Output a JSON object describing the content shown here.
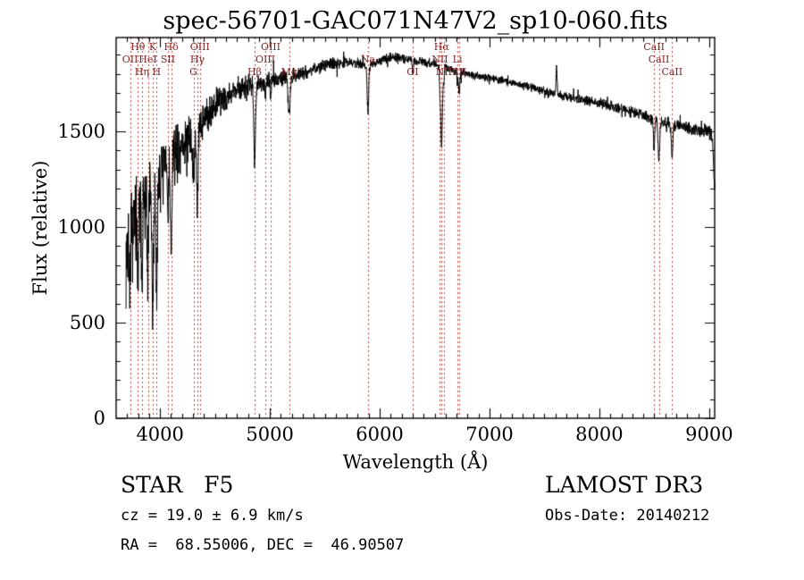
{
  "title": "spec-56701-GAC071N47V2_sp10-060.fits",
  "footer": {
    "class_label": "STAR   F5",
    "survey": "LAMOST DR3",
    "cz": "cz = 19.0 ± 6.9 km/s",
    "obs_date": "Obs-Date: 20140212",
    "radec": "RA =  68.55006, DEC =  46.90507"
  },
  "chart_data": {
    "type": "line",
    "title": "spec-56701-GAC071N47V2_sp10-060.fits",
    "xlabel": "Wavelength (Å)",
    "ylabel": "Flux (relative)",
    "xlim": [
      3600,
      9050
    ],
    "ylim": [
      0,
      1990
    ],
    "xticks": [
      4000,
      5000,
      6000,
      7000,
      8000,
      9000
    ],
    "yticks": [
      0,
      500,
      1000,
      1500
    ],
    "grid": false,
    "line_color": "#000000",
    "marker_line_color": "#b44033",
    "marker_label_color": "#8b2222",
    "spectral_lines": [
      {
        "label": "OII",
        "wavelength": 3727,
        "row": 1
      },
      {
        "label": "Hθ",
        "wavelength": 3798,
        "row": 0
      },
      {
        "label": "Hη",
        "wavelength": 3835,
        "row": 2
      },
      {
        "label": "HeI",
        "wavelength": 3889,
        "row": 1
      },
      {
        "label": "K",
        "wavelength": 3933,
        "row": 0
      },
      {
        "label": "H",
        "wavelength": 3968,
        "row": 2
      },
      {
        "label": "SII",
        "wavelength": 4072,
        "row": 1
      },
      {
        "label": "Hδ",
        "wavelength": 4101,
        "row": 0
      },
      {
        "label": "G",
        "wavelength": 4304,
        "row": 2
      },
      {
        "label": "Hγ",
        "wavelength": 4340,
        "row": 1
      },
      {
        "label": "OIII",
        "wavelength": 4363,
        "row": 0
      },
      {
        "label": "Hβ",
        "wavelength": 4861,
        "row": 2
      },
      {
        "label": "OIII",
        "wavelength": 4959,
        "row": 1
      },
      {
        "label": "OIII",
        "wavelength": 5007,
        "row": 0
      },
      {
        "label": "Mg",
        "wavelength": 5175,
        "row": 2
      },
      {
        "label": "Na",
        "wavelength": 5893,
        "row": 1
      },
      {
        "label": "OI",
        "wavelength": 6300,
        "row": 2
      },
      {
        "label": "NII",
        "wavelength": 6548,
        "row": 1
      },
      {
        "label": "Hα",
        "wavelength": 6563,
        "row": 0
      },
      {
        "label": "NII",
        "wavelength": 6584,
        "row": 2
      },
      {
        "label": "Li",
        "wavelength": 6708,
        "row": 1
      },
      {
        "label": "SII",
        "wavelength": 6724,
        "row": 2
      },
      {
        "label": "CaII",
        "wavelength": 8498,
        "row": 0
      },
      {
        "label": "CaII",
        "wavelength": 8542,
        "row": 1
      },
      {
        "label": "CaII",
        "wavelength": 8662,
        "row": 2
      }
    ],
    "continuum": [
      [
        3650,
        600
      ],
      [
        3690,
        850
      ],
      [
        3720,
        950
      ],
      [
        3760,
        1020
      ],
      [
        3800,
        1080
      ],
      [
        3850,
        1130
      ],
      [
        3900,
        1180
      ],
      [
        3950,
        1230
      ],
      [
        4000,
        1280
      ],
      [
        4050,
        1320
      ],
      [
        4100,
        1360
      ],
      [
        4150,
        1390
      ],
      [
        4200,
        1420
      ],
      [
        4300,
        1490
      ],
      [
        4400,
        1570
      ],
      [
        4500,
        1630
      ],
      [
        4600,
        1680
      ],
      [
        4700,
        1720
      ],
      [
        4800,
        1740
      ],
      [
        4900,
        1755
      ],
      [
        5000,
        1765
      ],
      [
        5100,
        1775
      ],
      [
        5200,
        1790
      ],
      [
        5300,
        1805
      ],
      [
        5400,
        1825
      ],
      [
        5500,
        1845
      ],
      [
        5600,
        1858
      ],
      [
        5700,
        1862
      ],
      [
        5800,
        1855
      ],
      [
        5900,
        1845
      ],
      [
        6000,
        1868
      ],
      [
        6100,
        1888
      ],
      [
        6200,
        1885
      ],
      [
        6300,
        1872
      ],
      [
        6400,
        1862
      ],
      [
        6500,
        1850
      ],
      [
        6600,
        1835
      ],
      [
        6700,
        1815
      ],
      [
        6800,
        1800
      ],
      [
        6900,
        1790
      ],
      [
        7000,
        1780
      ],
      [
        7100,
        1768
      ],
      [
        7200,
        1752
      ],
      [
        7300,
        1740
      ],
      [
        7400,
        1728
      ],
      [
        7500,
        1712
      ],
      [
        7600,
        1695
      ],
      [
        7700,
        1682
      ],
      [
        7800,
        1670
      ],
      [
        7900,
        1660
      ],
      [
        8000,
        1648
      ],
      [
        8100,
        1632
      ],
      [
        8200,
        1615
      ],
      [
        8300,
        1600
      ],
      [
        8400,
        1582
      ],
      [
        8500,
        1562
      ],
      [
        8600,
        1545
      ],
      [
        8700,
        1532
      ],
      [
        8800,
        1520
      ],
      [
        8900,
        1510
      ],
      [
        9000,
        1500
      ],
      [
        9030,
        1460
      ],
      [
        9050,
        1180
      ]
    ],
    "absorption_lines": [
      {
        "wavelength": 3727,
        "depth": 260,
        "sigma": 7
      },
      {
        "wavelength": 3798,
        "depth": 380,
        "sigma": 6
      },
      {
        "wavelength": 3835,
        "depth": 480,
        "sigma": 6
      },
      {
        "wavelength": 3889,
        "depth": 420,
        "sigma": 6
      },
      {
        "wavelength": 3933,
        "depth": 680,
        "sigma": 7
      },
      {
        "wavelength": 3968,
        "depth": 600,
        "sigma": 7
      },
      {
        "wavelength": 4072,
        "depth": 280,
        "sigma": 5
      },
      {
        "wavelength": 4101,
        "depth": 520,
        "sigma": 7
      },
      {
        "wavelength": 4304,
        "depth": 230,
        "sigma": 9
      },
      {
        "wavelength": 4340,
        "depth": 430,
        "sigma": 7
      },
      {
        "wavelength": 4861,
        "depth": 380,
        "sigma": 8
      },
      {
        "wavelength": 4959,
        "depth": 90,
        "sigma": 5
      },
      {
        "wavelength": 5007,
        "depth": 90,
        "sigma": 5
      },
      {
        "wavelength": 5175,
        "depth": 190,
        "sigma": 9
      },
      {
        "wavelength": 5893,
        "depth": 240,
        "sigma": 7
      },
      {
        "wavelength": 6300,
        "depth": 70,
        "sigma": 5
      },
      {
        "wavelength": 6548,
        "depth": 80,
        "sigma": 4
      },
      {
        "wavelength": 6563,
        "depth": 420,
        "sigma": 8
      },
      {
        "wavelength": 6584,
        "depth": 80,
        "sigma": 4
      },
      {
        "wavelength": 6708,
        "depth": 60,
        "sigma": 4
      },
      {
        "wavelength": 6724,
        "depth": 110,
        "sigma": 6
      },
      {
        "wavelength": 8498,
        "depth": 150,
        "sigma": 6
      },
      {
        "wavelength": 8542,
        "depth": 210,
        "sigma": 7
      },
      {
        "wavelength": 8662,
        "depth": 180,
        "sigma": 7
      }
    ],
    "emission_spikes": [
      {
        "wavelength": 7610,
        "height": 140,
        "sigma": 5
      }
    ],
    "noise_profile": [
      [
        3690,
        240
      ],
      [
        3900,
        190
      ],
      [
        4100,
        150
      ],
      [
        4300,
        110
      ],
      [
        4500,
        80
      ],
      [
        4800,
        55
      ],
      [
        5100,
        40
      ],
      [
        5400,
        30
      ],
      [
        5800,
        26
      ],
      [
        6300,
        22
      ],
      [
        7000,
        20
      ],
      [
        7600,
        22
      ],
      [
        8200,
        26
      ],
      [
        8700,
        30
      ],
      [
        9050,
        34
      ]
    ]
  }
}
